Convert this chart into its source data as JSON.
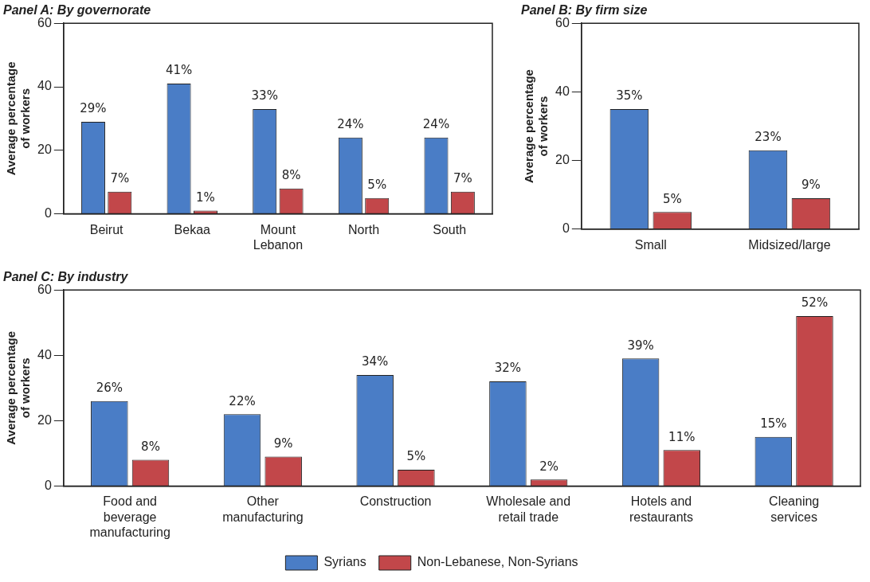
{
  "chart_data": [
    {
      "type": "bar",
      "title": "Panel A: By governorate",
      "ylabel": "Average percentage of workers",
      "categories": [
        "Beirut",
        "Bekaa",
        "Mount Lebanon",
        "North",
        "South"
      ],
      "ylim": [
        0,
        60
      ],
      "yticks": [
        0,
        20,
        40,
        60
      ],
      "grid": false,
      "legend": false,
      "series": [
        {
          "color": "#4a7dc6",
          "values": [
            29,
            41,
            33,
            24,
            24
          ],
          "value_labels": [
            "29%",
            "41%",
            "33%",
            "24%",
            "24%"
          ]
        },
        {
          "color": "#c2474a",
          "values": [
            7,
            1,
            8,
            5,
            7
          ],
          "value_labels": [
            "7%",
            "1%",
            "8%",
            "5%",
            "7%"
          ]
        }
      ]
    },
    {
      "type": "bar",
      "title": "Panel B: By firm size",
      "ylabel": "Average percentage of workers",
      "categories": [
        "Small",
        "Midsized/large"
      ],
      "ylim": [
        0,
        60
      ],
      "yticks": [
        0,
        20,
        40,
        60
      ],
      "grid": false,
      "legend": false,
      "series": [
        {
          "color": "#4a7dc6",
          "values": [
            35,
            23
          ],
          "value_labels": [
            "35%",
            "23%"
          ]
        },
        {
          "color": "#c2474a",
          "values": [
            5,
            9
          ],
          "value_labels": [
            "5%",
            "9%"
          ]
        }
      ]
    },
    {
      "type": "bar",
      "title": "Panel C: By industry",
      "ylabel": "Average percentage of workers",
      "categories": [
        "Food and beverage manufacturing",
        "Other manufacturing",
        "Construction",
        "Wholesale and retail trade",
        "Hotels and restaurants",
        "Cleaning services"
      ],
      "ylim": [
        0,
        60
      ],
      "yticks": [
        0,
        20,
        40,
        60
      ],
      "grid": false,
      "legend": "bottom",
      "series": [
        {
          "name": "Syrians",
          "color": "#4a7dc6",
          "values": [
            26,
            22,
            34,
            32,
            39,
            15
          ],
          "value_labels": [
            "26%",
            "22%",
            "34%",
            "32%",
            "39%",
            "15%"
          ]
        },
        {
          "name": "Non-Lebanese, Non-Syrians",
          "color": "#c2474a",
          "values": [
            8,
            9,
            5,
            2,
            11,
            52
          ],
          "value_labels": [
            "8%",
            "9%",
            "5%",
            "2%",
            "11%",
            "52%"
          ]
        }
      ]
    }
  ]
}
